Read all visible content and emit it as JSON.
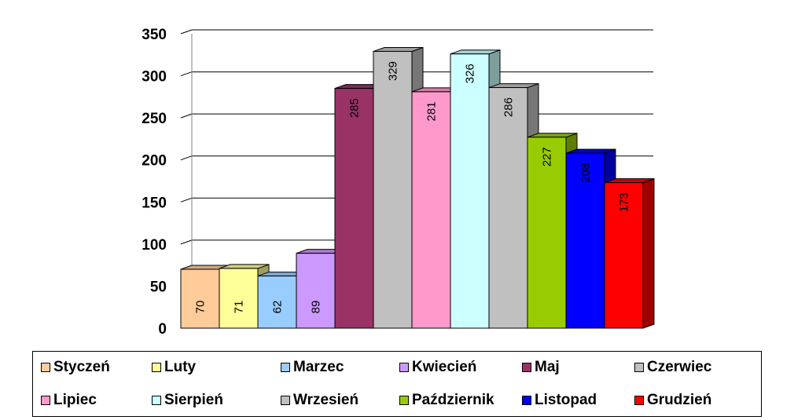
{
  "chart_data": {
    "type": "bar",
    "style": "3d",
    "categories": [
      "Styczeń",
      "Luty",
      "Marzec",
      "Kwiecień",
      "Maj",
      "Czerwiec",
      "Lipiec",
      "Sierpień",
      "Wrzesień",
      "Październik",
      "Listopad",
      "Grudzień"
    ],
    "values": [
      70,
      71,
      62,
      89,
      285,
      329,
      281,
      326,
      286,
      227,
      208,
      173
    ],
    "colors": [
      "#FFCC99",
      "#FFFF99",
      "#99CCFF",
      "#CC99FF",
      "#993366",
      "#C0C0C0",
      "#FF99CC",
      "#CCFFFF",
      "#C0C0C0",
      "#99CC00",
      "#0000FF",
      "#FF0000"
    ],
    "ylim": [
      0,
      350
    ],
    "yticks": [
      0,
      50,
      100,
      150,
      200,
      250,
      300,
      350
    ],
    "grid": true,
    "legend": "bottom",
    "data_labels": "inside-rotated"
  }
}
